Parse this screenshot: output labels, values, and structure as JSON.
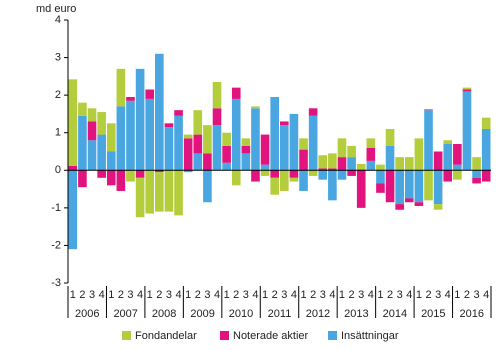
{
  "chart_data": {
    "type": "bar",
    "stacked": true,
    "y_label": "md euro",
    "categories": [
      "1",
      "2",
      "3",
      "4",
      "1",
      "2",
      "3",
      "4",
      "1",
      "2",
      "3",
      "4",
      "1",
      "2",
      "3",
      "4",
      "1",
      "2",
      "3",
      "4",
      "1",
      "2",
      "3",
      "4",
      "1",
      "2",
      "3",
      "4",
      "1",
      "2",
      "3",
      "4",
      "1",
      "2",
      "3",
      "4",
      "1",
      "2",
      "3",
      "4",
      "1",
      "2",
      "3",
      "4"
    ],
    "years": [
      "2006",
      "2007",
      "2008",
      "2009",
      "2010",
      "2011",
      "2012",
      "2013",
      "2014",
      "2015",
      "2016"
    ],
    "series": [
      {
        "name": "Insättningar",
        "color": "#4aa6e0",
        "values": [
          -2.1,
          1.45,
          0.8,
          0.95,
          0.5,
          1.7,
          1.85,
          2.7,
          1.9,
          3.1,
          1.15,
          1.45,
          -0.05,
          0.45,
          -0.85,
          1.2,
          0.2,
          1.9,
          0.45,
          1.65,
          0.15,
          1.95,
          1.2,
          1.5,
          -0.55,
          1.45,
          -0.25,
          -0.8,
          -0.25,
          0.35,
          0.02,
          0.25,
          -0.35,
          0.65,
          -0.9,
          -0.75,
          -0.85,
          1.6,
          -0.9,
          0.7,
          0.15,
          2.1,
          -0.2,
          1.1
        ]
      },
      {
        "name": "Noterade aktier",
        "color": "#e0137f",
        "values": [
          0.12,
          -0.45,
          0.5,
          -0.2,
          -0.4,
          -0.55,
          0.1,
          -0.2,
          0.25,
          -0.05,
          0.1,
          0.15,
          0.85,
          0.5,
          0.45,
          0.45,
          0.45,
          0.3,
          0.2,
          -0.3,
          0.8,
          -0.2,
          0.1,
          -0.2,
          0.55,
          0.2,
          0.05,
          0.05,
          0.35,
          -0.15,
          -1.0,
          0.35,
          -0.25,
          -0.85,
          -0.15,
          -0.1,
          -0.1,
          0.02,
          0.5,
          -0.3,
          0.55,
          0.05,
          -0.15,
          -0.3
        ]
      },
      {
        "name": "Fondandelar",
        "color": "#b3cd3c",
        "values": [
          2.3,
          0.35,
          0.35,
          0.6,
          0.75,
          1.0,
          -0.3,
          -1.05,
          -1.15,
          -1.05,
          -1.1,
          -1.2,
          0.1,
          0.65,
          0.75,
          0.7,
          0.35,
          -0.4,
          0.2,
          0.05,
          -0.15,
          -0.45,
          -0.55,
          -0.1,
          0.3,
          -0.15,
          0.35,
          0.4,
          0.5,
          0.3,
          0.15,
          0.25,
          0.15,
          0.45,
          0.35,
          0.35,
          0.85,
          -0.8,
          -0.15,
          0.1,
          -0.25,
          0.05,
          0.35,
          0.3
        ]
      }
    ],
    "ylim": [
      -3,
      4
    ],
    "yticks": [
      -3,
      -2,
      -1,
      0,
      1,
      2,
      3,
      4
    ],
    "legend": "bottom"
  }
}
